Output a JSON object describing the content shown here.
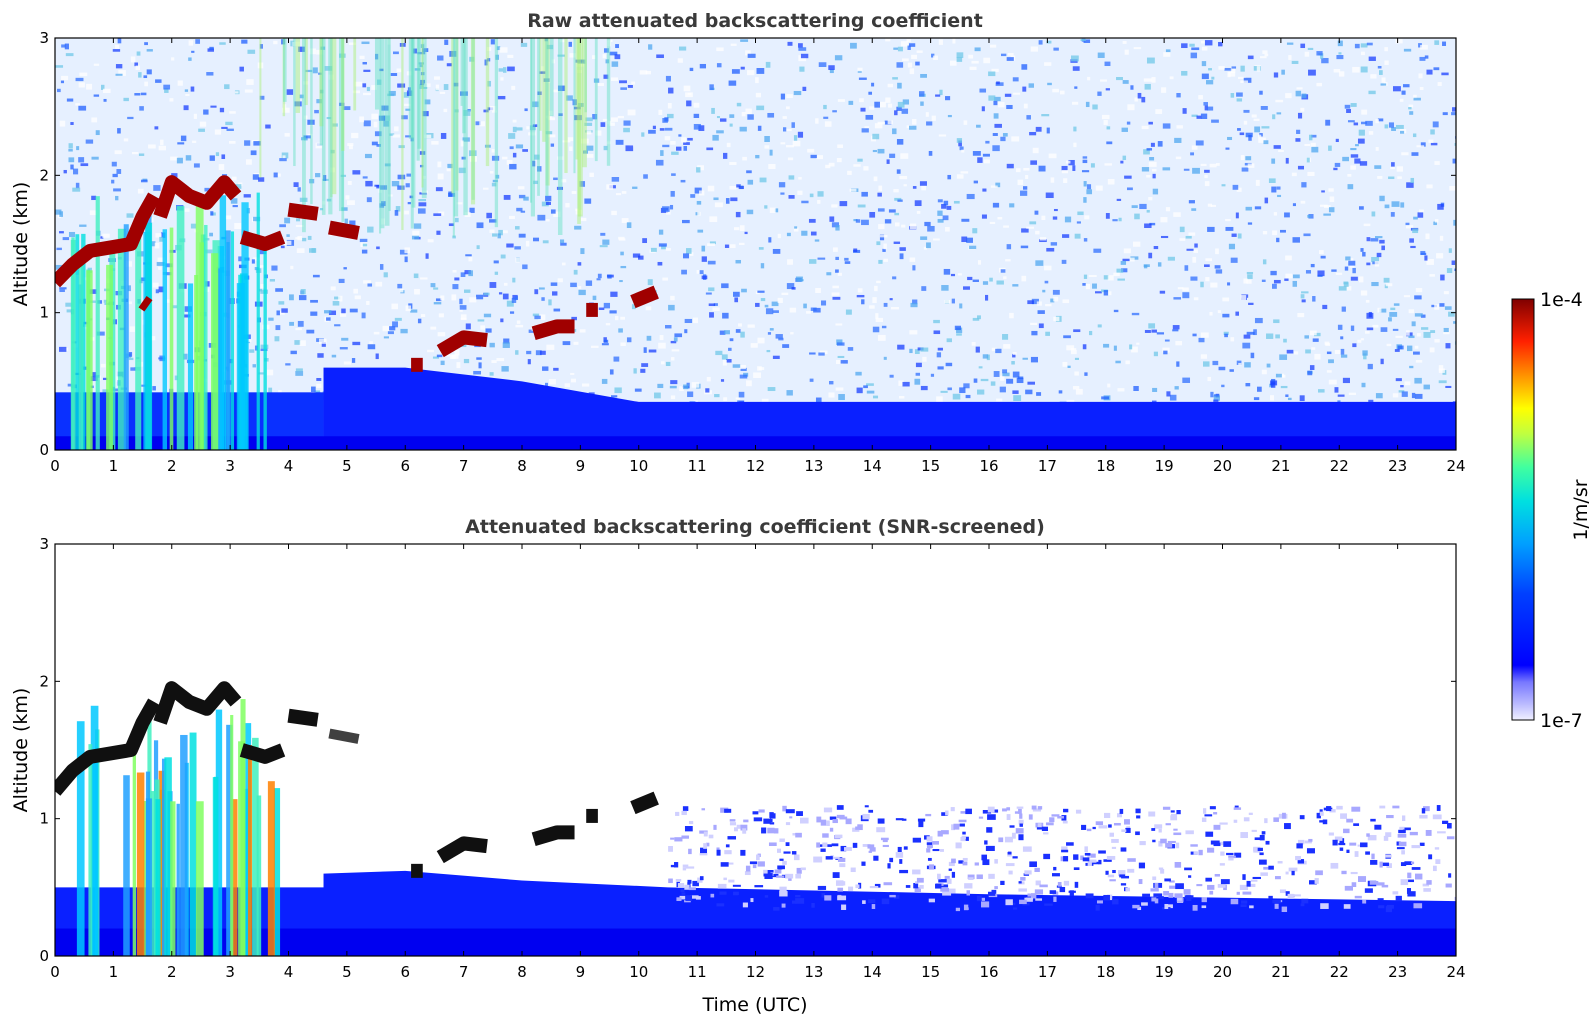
{
  "chart_data": [
    {
      "type": "heatmap",
      "title": "Raw attenuated backscattering coefficient",
      "xlabel": "",
      "ylabel": "Altitude (km)",
      "xlim": [
        0,
        24
      ],
      "ylim": [
        0,
        3
      ],
      "xticks": [
        "0",
        "1",
        "2",
        "3",
        "4",
        "5",
        "6",
        "7",
        "8",
        "9",
        "10",
        "11",
        "12",
        "13",
        "14",
        "15",
        "16",
        "17",
        "18",
        "19",
        "20",
        "21",
        "22",
        "23",
        "24"
      ],
      "yticks": [
        "0",
        "1",
        "2",
        "3"
      ],
      "features": [
        {
          "kind": "cloud",
          "t_start": 0.0,
          "t_end": 1.3,
          "alt_km": 1.45
        },
        {
          "kind": "cloud",
          "t_start": 1.3,
          "t_end": 3.2,
          "alt_km": 1.85
        },
        {
          "kind": "cloud",
          "t_start": 3.2,
          "t_end": 4.5,
          "alt_km": 1.7
        },
        {
          "kind": "cloud",
          "t_start": 4.7,
          "t_end": 5.2,
          "alt_km": 1.6
        },
        {
          "kind": "cloud",
          "t_start": 6.0,
          "t_end": 10.4,
          "alt_km": 0.6,
          "alt_end_km": 1.15
        }
      ],
      "boundary_layer_top_km": 0.4
    },
    {
      "type": "heatmap",
      "title": "Attenuated backscattering coefficient (SNR-screened)",
      "xlabel": "Time (UTC)",
      "ylabel": "Altitude (km)",
      "xlim": [
        0,
        24
      ],
      "ylim": [
        0,
        3
      ],
      "xticks": [
        "0",
        "1",
        "2",
        "3",
        "4",
        "5",
        "6",
        "7",
        "8",
        "9",
        "10",
        "11",
        "12",
        "13",
        "14",
        "15",
        "16",
        "17",
        "18",
        "19",
        "20",
        "21",
        "22",
        "23",
        "24"
      ],
      "yticks": [
        "0",
        "1",
        "2",
        "3"
      ]
    }
  ],
  "colorbar": {
    "max_label": "1e-4",
    "min_label": "1e-7",
    "unit_label": "1/m/sr",
    "scale": "log",
    "colormap": "jet",
    "colors": [
      "#ececff",
      "#c8c8ff",
      "#9f9fff",
      "#0000ff",
      "#0050ff",
      "#00a0ff",
      "#00e0f0",
      "#40ffb0",
      "#a0ff50",
      "#ffff00",
      "#ffa000",
      "#ff3000",
      "#c00000",
      "#800000"
    ]
  }
}
